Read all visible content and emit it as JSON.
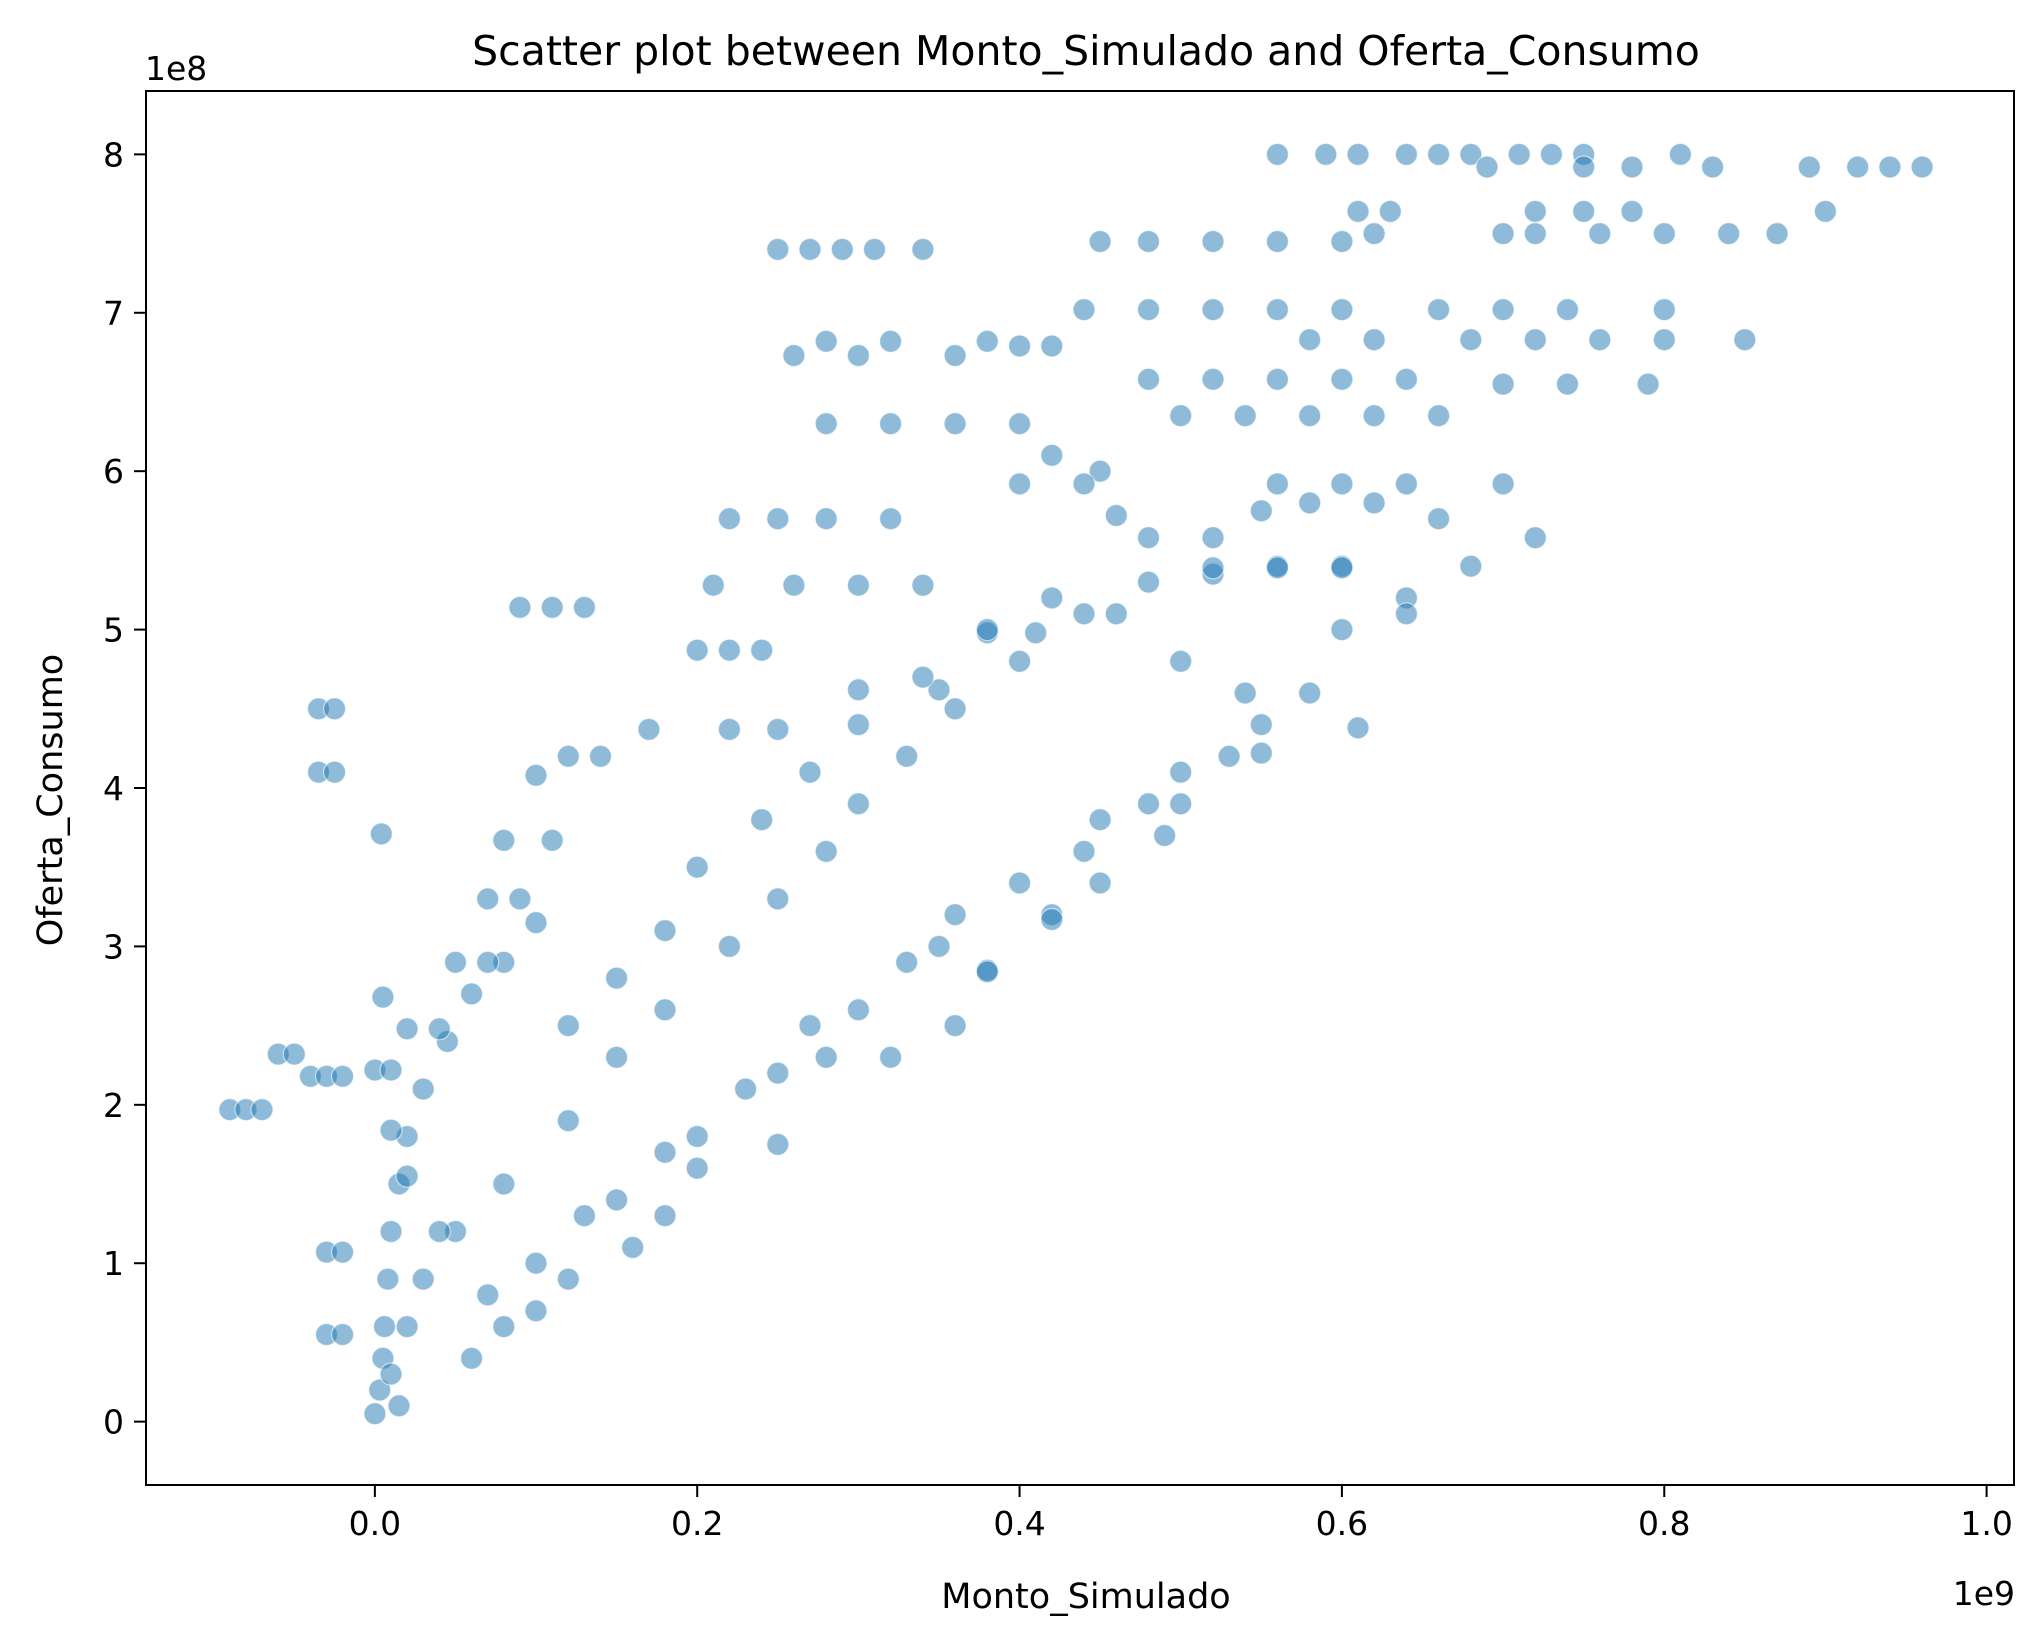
{
  "chart_data": {
    "type": "scatter",
    "title": "Scatter plot between Monto_Simulado and Oferta_Consumo",
    "xlabel": "Monto_Simulado",
    "ylabel": "Oferta_Consumo",
    "x_multiplier": "1e9",
    "y_multiplier": "1e8",
    "xlim": [
      -0.142,
      1.017
    ],
    "ylim": [
      -0.4,
      8.4
    ],
    "x_ticks": [
      0.0,
      0.2,
      0.4,
      0.6,
      0.8,
      1.0
    ],
    "x_tick_labels": [
      "0.0",
      "0.2",
      "0.4",
      "0.6",
      "0.8",
      "1.0"
    ],
    "y_ticks": [
      0,
      1,
      2,
      3,
      4,
      5,
      6,
      7,
      8
    ],
    "y_tick_labels": [
      "0",
      "1",
      "2",
      "3",
      "4",
      "5",
      "6",
      "7",
      "8"
    ],
    "grid": false,
    "legend": "none",
    "marker_color": "#1f77b4",
    "marker_alpha": 0.5,
    "marker_edge_color": "#ffffff",
    "points": [
      [
        0.0,
        0.05
      ],
      [
        0.003,
        0.2
      ],
      [
        0.005,
        0.4
      ],
      [
        0.006,
        0.6
      ],
      [
        0.008,
        0.9
      ],
      [
        0.01,
        1.2
      ],
      [
        0.015,
        1.5
      ],
      [
        0.02,
        1.8
      ],
      [
        0.03,
        2.1
      ],
      [
        0.045,
        2.4
      ],
      [
        0.06,
        2.7
      ],
      [
        0.08,
        2.9
      ],
      [
        0.05,
        1.2
      ],
      [
        0.08,
        1.5
      ],
      [
        0.12,
        1.9
      ],
      [
        0.15,
        2.3
      ],
      [
        0.18,
        2.6
      ],
      [
        0.22,
        3.0
      ],
      [
        0.25,
        3.3
      ],
      [
        0.28,
        3.6
      ],
      [
        0.3,
        3.9
      ],
      [
        0.33,
        4.2
      ],
      [
        0.36,
        4.5
      ],
      [
        0.4,
        4.8
      ],
      [
        0.44,
        5.1
      ],
      [
        0.48,
        5.3
      ],
      [
        0.52,
        5.35
      ],
      [
        0.56,
        5.4
      ],
      [
        0.6,
        5.4
      ],
      [
        0.64,
        5.2
      ],
      [
        0.1,
        1.0
      ],
      [
        0.15,
        1.4
      ],
      [
        0.2,
        1.8
      ],
      [
        0.25,
        2.2
      ],
      [
        0.3,
        2.6
      ],
      [
        0.35,
        3.0
      ],
      [
        0.4,
        3.4
      ],
      [
        0.45,
        3.8
      ],
      [
        0.5,
        4.1
      ],
      [
        0.55,
        4.4
      ],
      [
        0.58,
        4.6
      ],
      [
        0.48,
        3.9
      ],
      [
        0.38,
        2.85
      ],
      [
        0.42,
        3.2
      ],
      [
        0.28,
        2.3
      ],
      [
        0.2,
        1.6
      ],
      [
        0.1,
        0.7
      ],
      [
        0.06,
        0.4
      ],
      [
        -0.09,
        1.97
      ],
      [
        -0.08,
        1.97
      ],
      [
        -0.07,
        1.97
      ],
      [
        -0.06,
        2.32
      ],
      [
        -0.05,
        2.32
      ],
      [
        -0.04,
        2.18
      ],
      [
        -0.03,
        2.18
      ],
      [
        -0.02,
        2.18
      ],
      [
        -0.035,
        4.5
      ],
      [
        -0.025,
        4.5
      ],
      [
        -0.035,
        4.1
      ],
      [
        -0.025,
        4.1
      ],
      [
        0.004,
        3.71
      ],
      [
        0.005,
        2.68
      ],
      [
        -0.03,
        1.07
      ],
      [
        -0.02,
        1.07
      ],
      [
        -0.03,
        0.55
      ],
      [
        -0.02,
        0.55
      ],
      [
        0.0,
        2.22
      ],
      [
        0.01,
        2.22
      ],
      [
        0.09,
        5.14
      ],
      [
        0.11,
        5.14
      ],
      [
        0.13,
        5.14
      ],
      [
        0.22,
        5.7
      ],
      [
        0.25,
        5.7
      ],
      [
        0.28,
        5.7
      ],
      [
        0.32,
        5.7
      ],
      [
        0.2,
        4.87
      ],
      [
        0.22,
        4.87
      ],
      [
        0.24,
        4.87
      ],
      [
        0.21,
        5.28
      ],
      [
        0.26,
        5.28
      ],
      [
        0.3,
        5.28
      ],
      [
        0.34,
        5.28
      ],
      [
        0.26,
        6.73
      ],
      [
        0.3,
        6.73
      ],
      [
        0.36,
        6.73
      ],
      [
        0.4,
        6.79
      ],
      [
        0.42,
        6.79
      ],
      [
        0.28,
        6.82
      ],
      [
        0.32,
        6.82
      ],
      [
        0.38,
        6.82
      ],
      [
        0.25,
        7.4
      ],
      [
        0.27,
        7.4
      ],
      [
        0.29,
        7.4
      ],
      [
        0.31,
        7.4
      ],
      [
        0.34,
        7.4
      ],
      [
        0.28,
        6.3
      ],
      [
        0.32,
        6.3
      ],
      [
        0.36,
        6.3
      ],
      [
        0.4,
        6.3
      ],
      [
        0.42,
        6.1
      ],
      [
        0.45,
        6.0
      ],
      [
        0.4,
        5.92
      ],
      [
        0.44,
        5.92
      ],
      [
        0.46,
        5.72
      ],
      [
        0.48,
        5.58
      ],
      [
        0.52,
        5.58
      ],
      [
        0.55,
        5.75
      ],
      [
        0.58,
        5.8
      ],
      [
        0.62,
        5.8
      ],
      [
        0.66,
        5.7
      ],
      [
        0.7,
        5.92
      ],
      [
        0.72,
        5.58
      ],
      [
        0.68,
        5.4
      ],
      [
        0.64,
        5.1
      ],
      [
        0.6,
        5.0
      ],
      [
        0.61,
        4.38
      ],
      [
        0.55,
        4.22
      ],
      [
        0.5,
        3.9
      ],
      [
        0.45,
        3.4
      ],
      [
        0.42,
        3.17
      ],
      [
        0.38,
        2.84
      ],
      [
        0.6,
        5.92
      ],
      [
        0.64,
        5.92
      ],
      [
        0.56,
        5.92
      ],
      [
        0.5,
        6.35
      ],
      [
        0.54,
        6.35
      ],
      [
        0.58,
        6.35
      ],
      [
        0.62,
        6.35
      ],
      [
        0.66,
        6.35
      ],
      [
        0.48,
        6.58
      ],
      [
        0.52,
        6.58
      ],
      [
        0.56,
        6.58
      ],
      [
        0.6,
        6.58
      ],
      [
        0.64,
        6.58
      ],
      [
        0.7,
        6.55
      ],
      [
        0.74,
        6.55
      ],
      [
        0.79,
        6.55
      ],
      [
        0.44,
        7.02
      ],
      [
        0.48,
        7.02
      ],
      [
        0.52,
        7.02
      ],
      [
        0.56,
        7.02
      ],
      [
        0.6,
        7.02
      ],
      [
        0.66,
        7.02
      ],
      [
        0.7,
        7.02
      ],
      [
        0.74,
        7.02
      ],
      [
        0.8,
        7.02
      ],
      [
        0.58,
        6.83
      ],
      [
        0.62,
        6.83
      ],
      [
        0.68,
        6.83
      ],
      [
        0.72,
        6.83
      ],
      [
        0.76,
        6.83
      ],
      [
        0.8,
        6.83
      ],
      [
        0.85,
        6.83
      ],
      [
        0.45,
        7.45
      ],
      [
        0.48,
        7.45
      ],
      [
        0.52,
        7.45
      ],
      [
        0.56,
        7.45
      ],
      [
        0.6,
        7.45
      ],
      [
        0.62,
        7.5
      ],
      [
        0.7,
        7.5
      ],
      [
        0.72,
        7.5
      ],
      [
        0.76,
        7.5
      ],
      [
        0.8,
        7.5
      ],
      [
        0.84,
        7.5
      ],
      [
        0.87,
        7.5
      ],
      [
        0.61,
        7.64
      ],
      [
        0.63,
        7.64
      ],
      [
        0.72,
        7.64
      ],
      [
        0.75,
        7.64
      ],
      [
        0.78,
        7.64
      ],
      [
        0.9,
        7.64
      ],
      [
        0.56,
        8.0
      ],
      [
        0.59,
        8.0
      ],
      [
        0.61,
        8.0
      ],
      [
        0.64,
        8.0
      ],
      [
        0.66,
        8.0
      ],
      [
        0.68,
        8.0
      ],
      [
        0.71,
        8.0
      ],
      [
        0.73,
        8.0
      ],
      [
        0.75,
        8.0
      ],
      [
        0.81,
        8.0
      ],
      [
        0.69,
        7.92
      ],
      [
        0.75,
        7.92
      ],
      [
        0.78,
        7.92
      ],
      [
        0.83,
        7.92
      ],
      [
        0.89,
        7.92
      ],
      [
        0.92,
        7.92
      ],
      [
        0.94,
        7.92
      ],
      [
        0.96,
        7.92
      ],
      [
        0.52,
        5.39
      ],
      [
        0.56,
        5.39
      ],
      [
        0.6,
        5.39
      ],
      [
        0.38,
        4.98
      ],
      [
        0.41,
        4.98
      ],
      [
        0.35,
        4.62
      ],
      [
        0.3,
        4.62
      ],
      [
        0.25,
        4.37
      ],
      [
        0.22,
        4.37
      ],
      [
        0.17,
        4.37
      ],
      [
        0.12,
        4.2
      ],
      [
        0.14,
        4.2
      ],
      [
        0.1,
        4.08
      ],
      [
        0.08,
        3.67
      ],
      [
        0.11,
        3.67
      ],
      [
        0.07,
        3.3
      ],
      [
        0.09,
        3.3
      ],
      [
        0.1,
        3.15
      ],
      [
        0.05,
        2.9
      ],
      [
        0.07,
        2.9
      ],
      [
        0.02,
        2.48
      ],
      [
        0.04,
        2.48
      ],
      [
        0.01,
        1.84
      ],
      [
        0.02,
        1.55
      ],
      [
        0.04,
        1.2
      ],
      [
        0.03,
        0.9
      ],
      [
        0.02,
        0.6
      ],
      [
        0.01,
        0.3
      ],
      [
        0.015,
        0.1
      ],
      [
        0.08,
        0.6
      ],
      [
        0.12,
        0.9
      ],
      [
        0.16,
        1.1
      ],
      [
        0.18,
        1.3
      ],
      [
        0.25,
        1.75
      ],
      [
        0.32,
        2.3
      ],
      [
        0.36,
        2.5
      ],
      [
        0.15,
        2.8
      ],
      [
        0.12,
        2.5
      ],
      [
        0.18,
        3.1
      ],
      [
        0.2,
        3.5
      ],
      [
        0.24,
        3.8
      ],
      [
        0.27,
        4.1
      ],
      [
        0.3,
        4.4
      ],
      [
        0.34,
        4.7
      ],
      [
        0.38,
        5.0
      ],
      [
        0.42,
        5.2
      ],
      [
        0.46,
        5.1
      ],
      [
        0.5,
        4.8
      ],
      [
        0.54,
        4.6
      ],
      [
        0.53,
        4.2
      ],
      [
        0.49,
        3.7
      ],
      [
        0.44,
        3.6
      ],
      [
        0.36,
        3.2
      ],
      [
        0.33,
        2.9
      ],
      [
        0.27,
        2.5
      ],
      [
        0.23,
        2.1
      ],
      [
        0.18,
        1.7
      ],
      [
        0.13,
        1.3
      ],
      [
        0.07,
        0.8
      ]
    ]
  }
}
